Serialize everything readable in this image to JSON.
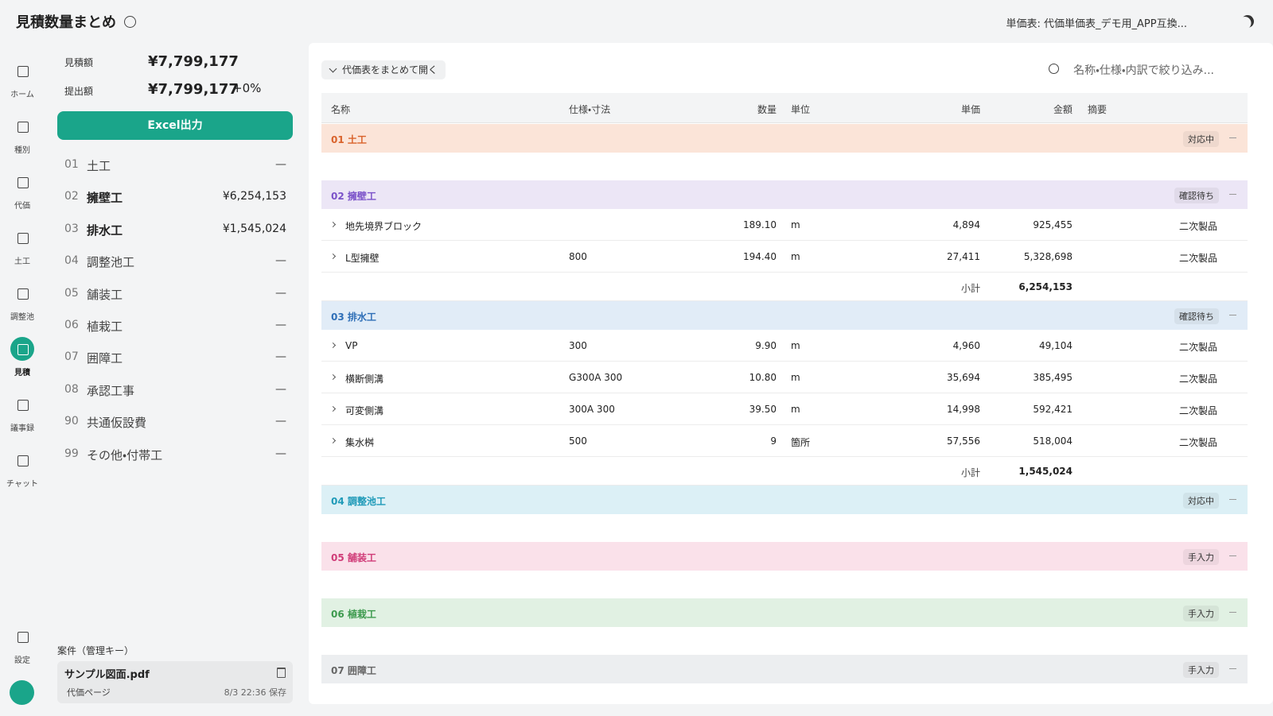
{
  "header": {
    "title": "見積数量まとめ",
    "price_table": "単価表: 代価単価表_デモ用_APP互換..."
  },
  "nav": {
    "items": [
      {
        "label": "ホーム"
      },
      {
        "label": "種別"
      },
      {
        "label": "代価"
      },
      {
        "label": "土工"
      },
      {
        "label": "調整池"
      },
      {
        "label": "見積"
      },
      {
        "label": "議事録"
      },
      {
        "label": "チャット"
      }
    ],
    "settings": "設定"
  },
  "summary": {
    "estimate_label": "見積額",
    "estimate_value": "¥7,799,177",
    "submit_label": "提出額",
    "submit_value": "¥7,799,177",
    "submit_change": "+0%",
    "export_button": "Excel出力"
  },
  "categories": [
    {
      "code": "01",
      "name": "土工",
      "amount": "—"
    },
    {
      "code": "02",
      "name": "擁壁工",
      "amount": "¥6,254,153"
    },
    {
      "code": "03",
      "name": "排水工",
      "amount": "¥1,545,024"
    },
    {
      "code": "04",
      "name": "調整池工",
      "amount": "—"
    },
    {
      "code": "05",
      "name": "舗装工",
      "amount": "—"
    },
    {
      "code": "06",
      "name": "植栽工",
      "amount": "—"
    },
    {
      "code": "07",
      "name": "囲障工",
      "amount": "—"
    },
    {
      "code": "08",
      "name": "承認工事",
      "amount": "—"
    },
    {
      "code": "90",
      "name": "共通仮設費",
      "amount": "—"
    },
    {
      "code": "99",
      "name": "その他・付帯工",
      "amount": "—"
    }
  ],
  "project": {
    "label": "案件（管理キー）",
    "file": "サンプル図面.pdf",
    "page": "代価ページ",
    "saved": "8/3 22:36 保存"
  },
  "toolbar": {
    "expand_all": "代価表をまとめて開く",
    "search_placeholder": "名称・仕様・内訳で絞り込み..."
  },
  "table": {
    "columns": [
      "名称",
      "仕様・寸法",
      "数量",
      "単位",
      "単価",
      "金額",
      "摘要"
    ],
    "sections": [
      {
        "title": "01 土工",
        "status": "対応中",
        "rows": []
      },
      {
        "title": "02 擁壁工",
        "status": "確認待ち",
        "rows": [
          [
            "地先境界ブロック",
            "",
            "189.10",
            "m",
            "4,894",
            "925,455",
            "二次製品"
          ],
          [
            "L型擁壁",
            "800",
            "194.40",
            "m",
            "27,411",
            "5,328,698",
            "二次製品"
          ]
        ],
        "subtotal_label": "小計",
        "subtotal": "6,254,153"
      },
      {
        "title": "03 排水工",
        "status": "確認待ち",
        "rows": [
          [
            "VP",
            "300",
            "9.90",
            "m",
            "4,960",
            "49,104",
            "二次製品"
          ],
          [
            "横断側溝",
            "G300A 300",
            "10.80",
            "m",
            "35,694",
            "385,495",
            "二次製品"
          ],
          [
            "可変側溝",
            "300A 300",
            "39.50",
            "m",
            "14,998",
            "592,421",
            "二次製品"
          ],
          [
            "集水桝",
            "500",
            "9",
            "箇所",
            "57,556",
            "518,004",
            "二次製品"
          ]
        ],
        "subtotal_label": "小計",
        "subtotal": "1,545,024"
      },
      {
        "title": "04 調整池工",
        "status": "対応中",
        "rows": []
      },
      {
        "title": "05 舗装工",
        "status": "手入力",
        "rows": []
      },
      {
        "title": "06 植栽工",
        "status": "手入力",
        "rows": []
      },
      {
        "title": "07 囲障工",
        "status": "手入力",
        "rows": []
      }
    ]
  }
}
